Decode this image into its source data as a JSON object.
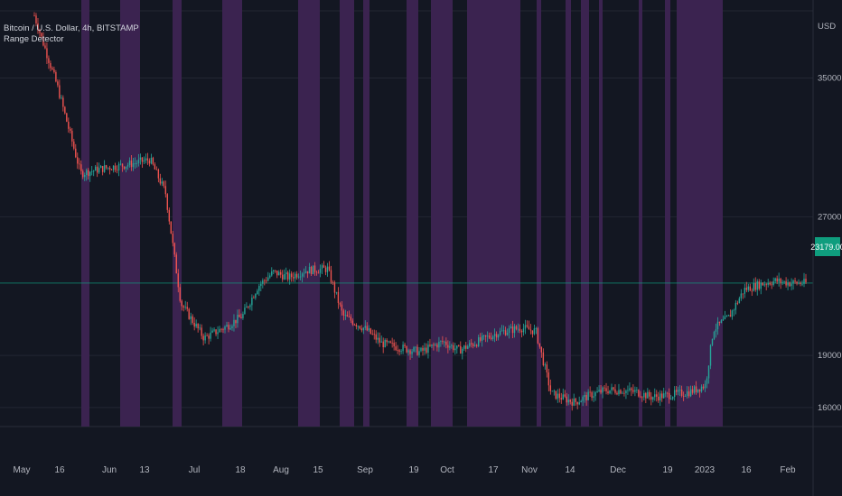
{
  "symbol_title": "Bitcoin / U.S. Dollar, 4h, BITSTAMP",
  "indicator_name": "Range Detector",
  "price_axis": {
    "currency": "USD",
    "ticks": [
      {
        "label": "35000.00",
        "value": 35000
      },
      {
        "label": "27000.00",
        "value": 27000
      },
      {
        "label": "19000.00",
        "value": 19000
      },
      {
        "label": "16000.00",
        "value": 16000
      }
    ],
    "current_price_label": "23179.00",
    "current_price_value": 23179
  },
  "time_axis": {
    "labels": [
      "May",
      "16",
      "Jun",
      "13",
      "Jul",
      "18",
      "Aug",
      "15",
      "Sep",
      "19",
      "Oct",
      "17",
      "Nov",
      "14",
      "Dec",
      "19",
      "2023",
      "16",
      "Feb"
    ]
  },
  "colors": {
    "background": "#131722",
    "range_shading": "#3b2350",
    "up_candle": "#26a69a",
    "down_candle": "#ef5350",
    "current_price": "#0f9d7e",
    "grid": "#232733"
  },
  "chart_data": {
    "type": "candlestick",
    "series": [
      {
        "name": "Bitcoin / U.S. Dollar",
        "values_approx": [
          [
            0,
            38600
          ],
          [
            0.03,
            34500
          ],
          [
            0.06,
            29500
          ],
          [
            0.09,
            29800
          ],
          [
            0.12,
            30000
          ],
          [
            0.15,
            30300
          ],
          [
            0.17,
            28400
          ],
          [
            0.19,
            22000
          ],
          [
            0.22,
            20000
          ],
          [
            0.25,
            20700
          ],
          [
            0.27,
            21300
          ],
          [
            0.29,
            23000
          ],
          [
            0.31,
            23800
          ],
          [
            0.33,
            23500
          ],
          [
            0.35,
            23900
          ],
          [
            0.38,
            24000
          ],
          [
            0.4,
            21300
          ],
          [
            0.43,
            20500
          ],
          [
            0.45,
            19700
          ],
          [
            0.48,
            19400
          ],
          [
            0.5,
            19200
          ],
          [
            0.53,
            19800
          ],
          [
            0.55,
            19300
          ],
          [
            0.57,
            19700
          ],
          [
            0.6,
            20300
          ],
          [
            0.63,
            20600
          ],
          [
            0.65,
            20400
          ],
          [
            0.67,
            16800
          ],
          [
            0.7,
            16300
          ],
          [
            0.72,
            16700
          ],
          [
            0.74,
            17000
          ],
          [
            0.76,
            17000
          ],
          [
            0.78,
            16900
          ],
          [
            0.8,
            16600
          ],
          [
            0.82,
            16700
          ],
          [
            0.85,
            16900
          ],
          [
            0.87,
            17300
          ],
          [
            0.88,
            20500
          ],
          [
            0.9,
            21200
          ],
          [
            0.92,
            22800
          ],
          [
            0.94,
            23100
          ],
          [
            0.96,
            23300
          ],
          [
            0.98,
            23179
          ]
        ]
      }
    ],
    "y_range": [
      14900,
      39500
    ]
  }
}
